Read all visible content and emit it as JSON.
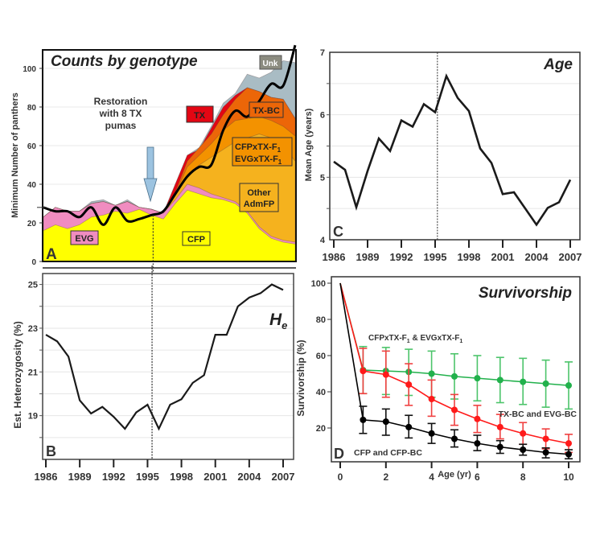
{
  "chart_data": [
    {
      "id": "A",
      "type": "area",
      "panel_letter": "A",
      "title": "Counts by genotype",
      "xlabel": "",
      "ylabel": "Minimum Number of panthers",
      "xlim": [
        1986,
        2007
      ],
      "ylim": [
        0,
        110
      ],
      "yticks": [
        0,
        20,
        40,
        60,
        80,
        100
      ],
      "grid": true,
      "x": [
        1986,
        1987,
        1988,
        1989,
        1990,
        1991,
        1992,
        1993,
        1994,
        1995,
        1996,
        1997,
        1998,
        1999,
        2000,
        2001,
        2002,
        2003,
        2004,
        2005,
        2006,
        2007
      ],
      "stacked_series_cumulative_top": [
        {
          "name": "CFP",
          "color": "#ffff00",
          "values": [
            16,
            19,
            17,
            19,
            23,
            24,
            26,
            25,
            27,
            24,
            22,
            30,
            37,
            35,
            33,
            32,
            30,
            25,
            17,
            12,
            10,
            9
          ]
        },
        {
          "name": "EVG",
          "color": "#f08cc0",
          "values": [
            23,
            28,
            26,
            26,
            30,
            31,
            29,
            31,
            28,
            27,
            25,
            32,
            40,
            38,
            35,
            33,
            31,
            26,
            18,
            13,
            11,
            10
          ]
        },
        {
          "name": "Other AdmFP",
          "color": "#f5b21e",
          "values": [
            23,
            28,
            26,
            26,
            30,
            31,
            29,
            31,
            28,
            27,
            25,
            34,
            45,
            50,
            54,
            58,
            62,
            64,
            66,
            64,
            60,
            52
          ]
        },
        {
          "name": "CFPxTX-F1 / EVGxTX-F1",
          "color": "#f39200",
          "values": [
            23,
            28,
            26,
            26,
            30,
            31,
            29,
            31,
            28,
            27,
            25,
            35,
            49,
            55,
            61,
            68,
            73,
            74,
            75,
            73,
            70,
            65
          ]
        },
        {
          "name": "TX-BC",
          "color": "#ec6608",
          "values": [
            23,
            28,
            26,
            26,
            30,
            31,
            29,
            31,
            28,
            27,
            25,
            36,
            52,
            59,
            66,
            76,
            84,
            90,
            88,
            85,
            84,
            74
          ]
        },
        {
          "name": "TX",
          "color": "#e30613",
          "values": [
            23,
            28,
            26,
            26,
            30,
            31,
            29,
            31,
            28,
            27,
            25,
            40,
            55,
            58,
            69,
            80,
            86,
            90,
            88,
            85,
            84,
            74
          ]
        },
        {
          "name": "Unk",
          "color": "#a9bcc4",
          "values": [
            23,
            28,
            26,
            26,
            31,
            32,
            29,
            32,
            28,
            27,
            25,
            40,
            55,
            59,
            70,
            82,
            87,
            97,
            95,
            98,
            104,
            103
          ]
        }
      ],
      "total_line": {
        "name": "Total (smoothed)",
        "color": "#000000",
        "values": [
          28,
          26,
          26,
          23,
          28,
          19,
          28,
          21,
          22,
          24,
          26,
          35,
          44,
          49,
          50,
          68,
          78,
          75,
          83,
          92,
          91,
          112
        ]
      },
      "annotations": {
        "restoration": "Restoration with 8 TX pumas",
        "restoration_lines": [
          "Restoration",
          "with 8 TX",
          "pumas"
        ],
        "restoration_year": 1995,
        "labels": {
          "evg": "EVG",
          "cfp": "CFP",
          "tx": "TX",
          "txbc": "TX-BC",
          "f1_line1": "CFPxTX-F",
          "f1_line2": "EVGxTX-F",
          "f1_sub": "1",
          "other_line1": "Other",
          "other_line2": "AdmFP",
          "unk": "Unk"
        }
      }
    },
    {
      "id": "C",
      "type": "line",
      "panel_letter": "C",
      "title": "Age",
      "xlabel": "",
      "ylabel": "Mean Age (years)",
      "xlim": [
        1986,
        2007
      ],
      "ylim": [
        4,
        7
      ],
      "yticks": [
        4,
        5,
        6,
        7
      ],
      "xticks": [
        1986,
        1989,
        1992,
        1995,
        1998,
        2001,
        2004,
        2007
      ],
      "grid": true,
      "reference_line_year": 1995.2,
      "x": [
        1986,
        1987,
        1988,
        1989,
        1990,
        1991,
        1992,
        1993,
        1994,
        1995,
        1996,
        1997,
        1998,
        1999,
        2000,
        2001,
        2002,
        2003,
        2004,
        2005,
        2006,
        2007
      ],
      "values": [
        5.25,
        5.12,
        4.52,
        5.1,
        5.62,
        5.42,
        5.91,
        5.81,
        6.17,
        6.04,
        6.62,
        6.27,
        6.06,
        5.46,
        5.23,
        4.73,
        4.76,
        4.5,
        4.24,
        4.51,
        4.6,
        4.96
      ]
    },
    {
      "id": "B",
      "type": "line",
      "panel_letter": "B",
      "title": "H",
      "title_sub": "e",
      "xlabel": "",
      "ylabel": "Est. Heterozygosity (%)",
      "xlim": [
        1986,
        2007
      ],
      "ylim": [
        17,
        25.5
      ],
      "yticks": [
        19,
        21,
        23,
        25
      ],
      "xticks": [
        1986,
        1989,
        1992,
        1995,
        1998,
        2001,
        2004,
        2007
      ],
      "grid": true,
      "reference_line_year": 1995.4,
      "x": [
        1986,
        1987,
        1988,
        1989,
        1990,
        1991,
        1992,
        1993,
        1994,
        1995,
        1996,
        1997,
        1998,
        1999,
        2000,
        2001,
        2002,
        2003,
        2004,
        2005,
        2006,
        2007
      ],
      "values": [
        22.7,
        22.4,
        21.7,
        19.7,
        19.1,
        19.4,
        18.95,
        18.4,
        19.15,
        19.5,
        18.4,
        19.5,
        19.75,
        20.5,
        20.85,
        22.7,
        22.7,
        24.0,
        24.4,
        24.6,
        25.0,
        24.75
      ]
    },
    {
      "id": "D",
      "type": "line",
      "panel_letter": "D",
      "title": "Survivorship",
      "xlabel": "Age (yr)",
      "ylabel": "Survivorship (%)",
      "xlim": [
        0,
        10
      ],
      "ylim": [
        0,
        100
      ],
      "yticks": [
        20,
        40,
        60,
        80,
        100
      ],
      "xticks": [
        0,
        2,
        4,
        6,
        8,
        10
      ],
      "grid": false,
      "x": [
        0,
        1,
        2,
        3,
        4,
        5,
        6,
        7,
        8,
        9,
        10
      ],
      "series": [
        {
          "name": "CFPxTX-F1 & EVGxTX-F1",
          "color": "#22b14c",
          "values": [
            100,
            52,
            51.5,
            51,
            50,
            48.5,
            47.5,
            46.5,
            45.5,
            44.5,
            43.5
          ],
          "err_low": [
            null,
            39,
            38.5,
            38,
            37,
            36,
            35,
            34,
            33,
            31.5,
            30.5
          ],
          "err_high": [
            null,
            65,
            64.5,
            63.5,
            62.5,
            61,
            60,
            59,
            58.5,
            57.5,
            56.5
          ]
        },
        {
          "name": "TX-BC and EVG-BC",
          "color": "#ff1a1a",
          "values": [
            100,
            51.5,
            49.5,
            44,
            36,
            30,
            25,
            20.5,
            17,
            14,
            11.5
          ],
          "err_low": [
            null,
            39,
            37,
            32.5,
            26.5,
            21.5,
            17.5,
            14,
            11,
            8.5,
            6.5
          ],
          "err_high": [
            null,
            64,
            62.5,
            55.5,
            46.5,
            38.5,
            32.5,
            27.5,
            23,
            19.5,
            16.5
          ]
        },
        {
          "name": "CFP and CFP-BC",
          "color": "#000000",
          "values": [
            100,
            24.5,
            23.5,
            20.5,
            17,
            14,
            11.5,
            9.5,
            8,
            6.5,
            5.5
          ],
          "err_low": [
            null,
            17,
            16,
            14.5,
            11.5,
            9.5,
            7.5,
            6,
            5,
            3.5,
            3
          ],
          "err_high": [
            null,
            32,
            30.5,
            27,
            22.5,
            19,
            16,
            13,
            11,
            9,
            8
          ]
        }
      ],
      "series_labels": {
        "f1_a": "CFPxTX-F",
        "f1_sub": "1",
        "f1_b": " & EVGxTX-F",
        "bc": "TX-BC and EVG-BC",
        "cfp": "CFP and CFP-BC"
      }
    }
  ]
}
